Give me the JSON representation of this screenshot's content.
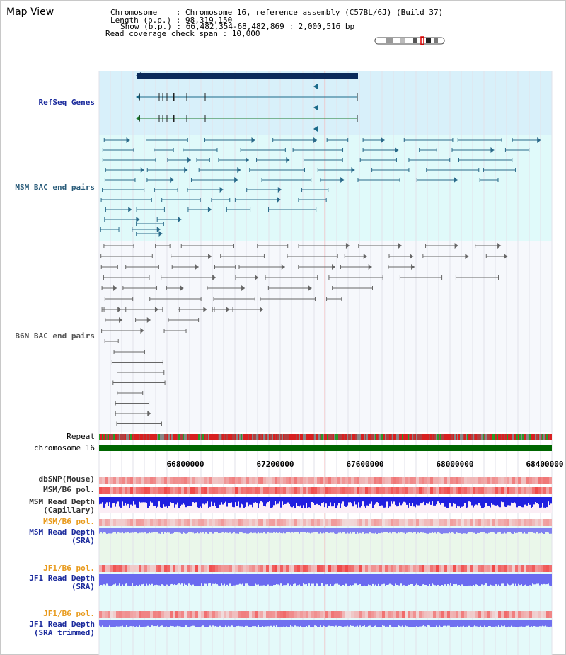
{
  "header": {
    "title": "Map View",
    "chromosome_line": "Chromosome    : Chromosome 16, reference assembly (C57BL/6J) (Build 37)",
    "length_line": "Length (b.p.) : 98,319,150",
    "show_line": "Show (b.p.) : 66,482,354-68,482,869 : 2,000,516 bp",
    "coverage_line": "Read coverage check span : 10,000"
  },
  "tracks": {
    "refseq_label": "RefSeq Genes",
    "msm_bac_label": "MSM BAC end pairs",
    "b6n_bac_label": "B6N BAC end pairs",
    "repeat_label": "Repeat",
    "chromosome_label": "chromosome 16",
    "dbsnp_label": "dbSNP(Mouse)",
    "msm_b6_pol_label": "MSM/B6 pol.",
    "msm_depth_cap_label": "MSM Read Depth\n(Capillary)",
    "msm_b6_pol2_label": "MSM/B6 pol.",
    "msm_depth_sra_label": "MSM Read Depth\n(SRA)",
    "jf1_b6_pol_label": "JF1/B6 pol.",
    "jf1_depth_sra_label": "JF1 Read Depth\n(SRA)",
    "jf1_b6_pol2_label": "JF1/B6 pol.",
    "jf1_depth_trim_label": "JF1 Read Depth\n(SRA trimmed)"
  },
  "axis": {
    "ticks": [
      "66800000",
      "67200000",
      "67600000",
      "68000000",
      "68400000"
    ]
  },
  "colors": {
    "refseq_bg": "#d8f0fa",
    "msm_bg": "#e0fafa",
    "b6n_bg": "#f6f8fc",
    "gene_dark": "#0b2a5a",
    "msm_feature": "#2a6a8a",
    "b6n_feature": "#666666",
    "chromosome": "#006600",
    "pol_red": "#f03030",
    "depth_blue": "#2020e0",
    "depth_sra": "#8080f0"
  }
}
